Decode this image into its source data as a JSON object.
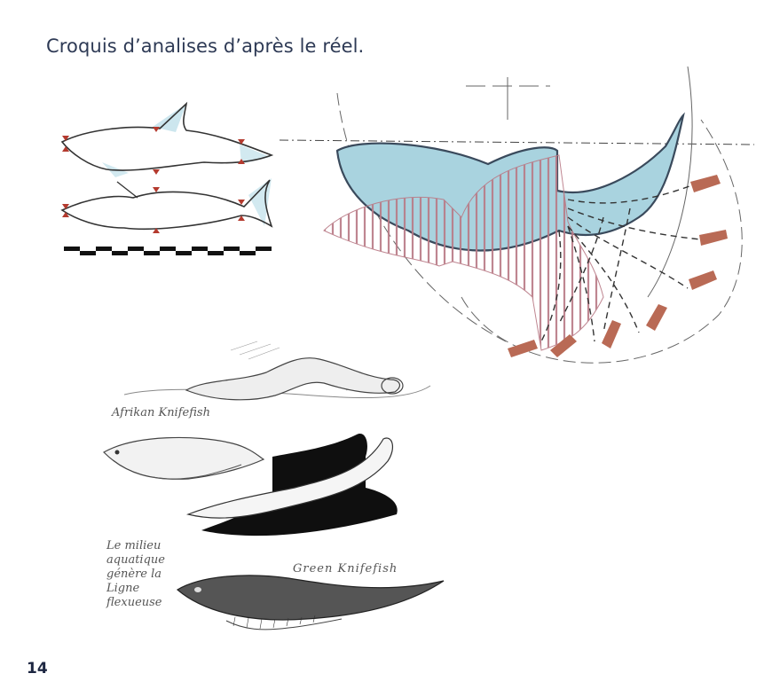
{
  "page": {
    "title": "Croquis d’analises d’après le réel.",
    "page_number": "14"
  },
  "sketches": {
    "dolphin_study": {
      "icon": "dolphin-sketch-icon"
    },
    "shark_study": {
      "icon": "shark-sketch-icon"
    },
    "eel_study": {
      "icon": "eel-sketch-icon"
    },
    "african_knifefish": {
      "caption": "Afrikan Knifefish",
      "icon": "knifefish-sketch-icon"
    },
    "green_knifefish": {
      "caption": "Green Knifefish",
      "icon": "green-knifefish-sketch-icon"
    },
    "note_lines": [
      "Le milieu",
      "aquatique",
      "génère la",
      "Ligne",
      "flexueuse"
    ]
  },
  "colors": {
    "title": "#2e3a55",
    "accent_blue": "#9ccbd9",
    "accent_rose": "#b97a86",
    "accent_rust": "#b96a55"
  }
}
